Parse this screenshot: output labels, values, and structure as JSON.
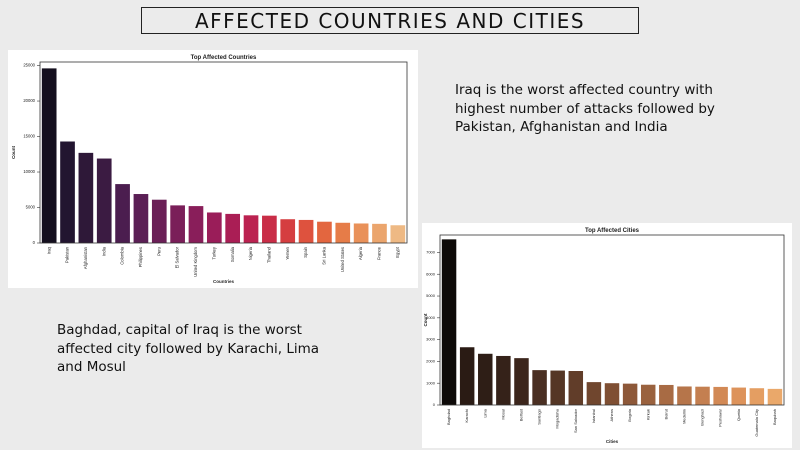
{
  "slide": {
    "title": "AFFECTED COUNTRIES AND CITIES",
    "countries_text": "Iraq is the worst affected country with highest number of attacks followed by Pakistan, Afghanistan and India",
    "cities_text": "Baghdad, capital of Iraq is the worst affected city followed by Karachi, Lima and Mosul"
  },
  "chart_data": [
    {
      "type": "bar",
      "title": "Top Affected Countries",
      "xlabel": "Countries",
      "ylabel": "Count",
      "ylim": [
        0,
        25500
      ],
      "yticks": [
        0,
        5000,
        10000,
        15000,
        20000,
        25000
      ],
      "categories": [
        "Iraq",
        "Pakistan",
        "Afghanistan",
        "India",
        "Colombia",
        "Philippines",
        "Peru",
        "El Salvador",
        "United Kingdom",
        "Turkey",
        "Somalia",
        "Nigeria",
        "Thailand",
        "Yemen",
        "Spain",
        "Sri Lanka",
        "United States",
        "Algeria",
        "France",
        "Egypt"
      ],
      "values": [
        24600,
        14300,
        12700,
        11900,
        8300,
        6900,
        6100,
        5300,
        5200,
        4300,
        4100,
        3900,
        3850,
        3350,
        3250,
        3000,
        2850,
        2750,
        2700,
        2500
      ],
      "colors": [
        "#140f1e",
        "#221530",
        "#2e1838",
        "#3b1b42",
        "#4b1d4f",
        "#5b1f55",
        "#6b1f57",
        "#7a1f59",
        "#891e5a",
        "#9a1d59",
        "#aa1e55",
        "#bb2250",
        "#c92d47",
        "#d53e40",
        "#de523e",
        "#e3663f",
        "#e67c48",
        "#e99159",
        "#eba56d",
        "#eeb984"
      ],
      "grid": false
    },
    {
      "type": "bar",
      "title": "Top Affected Cities",
      "xlabel": "Cities",
      "ylabel": "Count",
      "ylim": [
        0,
        7800
      ],
      "yticks": [
        0,
        1000,
        2000,
        3000,
        4000,
        5000,
        6000,
        7000
      ],
      "categories": [
        "Baghdad",
        "Karachi",
        "Lima",
        "Mosul",
        "Belfast",
        "Santiago",
        "Mogadishu",
        "San Salvador",
        "Istanbul",
        "Athens",
        "Bogota",
        "Kirkuk",
        "Beirut",
        "Medellin",
        "Benghazi",
        "Peshawar",
        "Quetta",
        "Guatemala City",
        "Baqubah"
      ],
      "values": [
        7600,
        2650,
        2350,
        2250,
        2150,
        1600,
        1580,
        1560,
        1050,
        1000,
        980,
        930,
        920,
        850,
        840,
        830,
        800,
        770,
        740
      ],
      "colors": [
        "#0d0a08",
        "#2a1b14",
        "#2e1e16",
        "#352219",
        "#3c261c",
        "#4a2f22",
        "#553625",
        "#613d29",
        "#70462e",
        "#7f4f33",
        "#8d5839",
        "#9a623e",
        "#a86b44",
        "#b6754a",
        "#c47f50",
        "#d28955",
        "#dd935b",
        "#e49e62",
        "#eaa86a"
      ],
      "grid": false
    }
  ]
}
